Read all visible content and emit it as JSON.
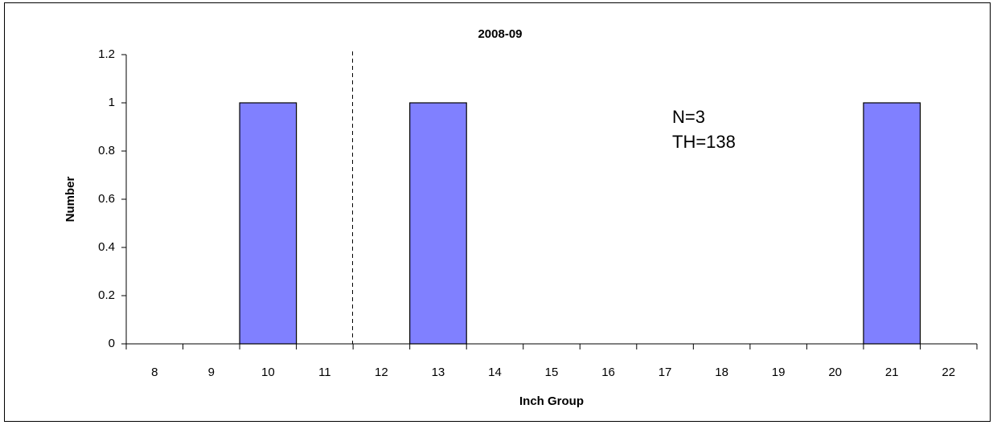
{
  "chart_data": {
    "type": "bar",
    "title": "2008-09",
    "x_label": "Inch Group",
    "y_label": "Number",
    "categories": [
      "8",
      "9",
      "10",
      "11",
      "12",
      "13",
      "14",
      "15",
      "16",
      "17",
      "18",
      "19",
      "20",
      "21",
      "22"
    ],
    "values": [
      0,
      0,
      1,
      0,
      0,
      1,
      0,
      0,
      0,
      0,
      0,
      0,
      0,
      1,
      0
    ],
    "color": "#8080ff",
    "ylim": [
      0,
      1.2
    ],
    "yticks": [
      0,
      0.2,
      0.4,
      0.6,
      0.8,
      1,
      1.2
    ],
    "annotations": [
      "N=3",
      "TH=138"
    ]
  }
}
